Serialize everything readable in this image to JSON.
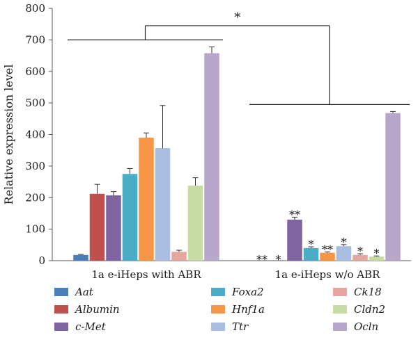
{
  "chart_data": {
    "type": "bar",
    "ylabel": "Relative expression level",
    "ylim": [
      0,
      800
    ],
    "yticks": [
      "0",
      "100",
      "200",
      "300",
      "400",
      "500",
      "600",
      "700",
      "800"
    ],
    "categories": [
      "1a e-iHeps with ABR",
      "1a e-iHeps w/o ABR"
    ],
    "series": [
      {
        "name": "Aat",
        "color": "#4a7ebb",
        "values": [
          18,
          0
        ],
        "errors": [
          2,
          0
        ],
        "marks": [
          "",
          "**"
        ]
      },
      {
        "name": "Albumin",
        "color": "#c0504d",
        "values": [
          212,
          0
        ],
        "errors": [
          30,
          0
        ],
        "marks": [
          "",
          "*"
        ]
      },
      {
        "name": "c-Met",
        "color": "#8064a2",
        "values": [
          207,
          130
        ],
        "errors": [
          12,
          8
        ],
        "marks": [
          "",
          "**"
        ]
      },
      {
        "name": "Foxa2",
        "color": "#4bacc6",
        "values": [
          275,
          40
        ],
        "errors": [
          17,
          4
        ],
        "marks": [
          "",
          "*"
        ]
      },
      {
        "name": "Hnf1a",
        "color": "#f79646",
        "values": [
          390,
          25
        ],
        "errors": [
          15,
          3
        ],
        "marks": [
          "",
          "**"
        ]
      },
      {
        "name": "Ttr",
        "color": "#a9bde0",
        "values": [
          357,
          46
        ],
        "errors": [
          135,
          5
        ],
        "marks": [
          "",
          "*"
        ]
      },
      {
        "name": "Ck18",
        "color": "#e6a59e",
        "values": [
          28,
          18
        ],
        "errors": [
          5,
          4
        ],
        "marks": [
          "",
          "*"
        ]
      },
      {
        "name": "Cldn2",
        "color": "#c9dba4",
        "values": [
          238,
          13
        ],
        "errors": [
          25,
          2
        ],
        "marks": [
          "",
          "*"
        ]
      },
      {
        "name": "Ocln",
        "color": "#b9a6cc",
        "values": [
          658,
          468
        ],
        "errors": [
          20,
          5
        ],
        "marks": [
          "",
          ""
        ]
      }
    ],
    "significance": {
      "label": "*",
      "group_bracket_levels": [
        700,
        495
      ],
      "top_level": 745
    },
    "legend_position": "bottom"
  }
}
